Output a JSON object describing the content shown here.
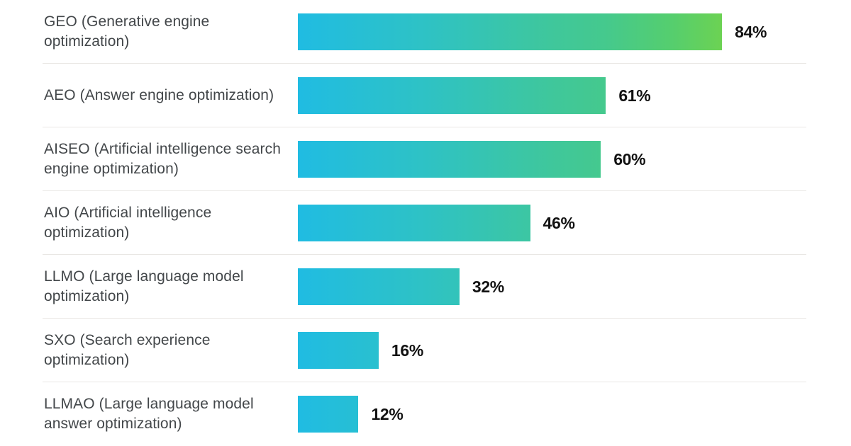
{
  "chart_data": {
    "type": "bar",
    "orientation": "horizontal",
    "title": "",
    "xlabel": "",
    "ylabel": "",
    "xlim": [
      0,
      100
    ],
    "grid": false,
    "legend": false,
    "value_suffix": "%",
    "bar_gradient_stops": [
      "#20BCE2",
      "#2EC2C5",
      "#3FC79C",
      "#45C98D",
      "#55CE6E",
      "#6CD253",
      "#8BDB2F"
    ],
    "categories": [
      "GEO (Generative engine optimization)",
      "AEO (Answer engine optimization)",
      "AISEO (Artificial intelligence search engine optimization)",
      "AIO (Artificial intelligence optimization)",
      "LLMO (Large language model optimization)",
      "SXO (Search experience optimization)",
      "LLMAO (Large language model answer optimization)"
    ],
    "values": [
      84,
      61,
      60,
      46,
      32,
      16,
      12
    ],
    "rows": [
      {
        "label": "GEO (Generative engine optimization)",
        "value": 84,
        "value_label": "84%"
      },
      {
        "label": "AEO (Answer engine optimization)",
        "value": 61,
        "value_label": "61%"
      },
      {
        "label": "AISEO (Artificial intelligence search engine optimization)",
        "value": 60,
        "value_label": "60%"
      },
      {
        "label": "AIO (Artificial intelligence optimization)",
        "value": 46,
        "value_label": "46%"
      },
      {
        "label": "LLMO (Large language model optimization)",
        "value": 32,
        "value_label": "32%"
      },
      {
        "label": "SXO (Search experience optimization)",
        "value": 16,
        "value_label": "16%"
      },
      {
        "label": "LLMAO (Large language model answer optimization)",
        "value": 12,
        "value_label": "12%"
      }
    ]
  },
  "colors": {
    "background": "#FFFFFF",
    "label_text": "#43474A",
    "value_text": "#121212",
    "separator": "#E9E7E4",
    "bar_gradient_start": "#20BCE2",
    "bar_gradient_end_at_100pct": "#8BDB2F"
  }
}
